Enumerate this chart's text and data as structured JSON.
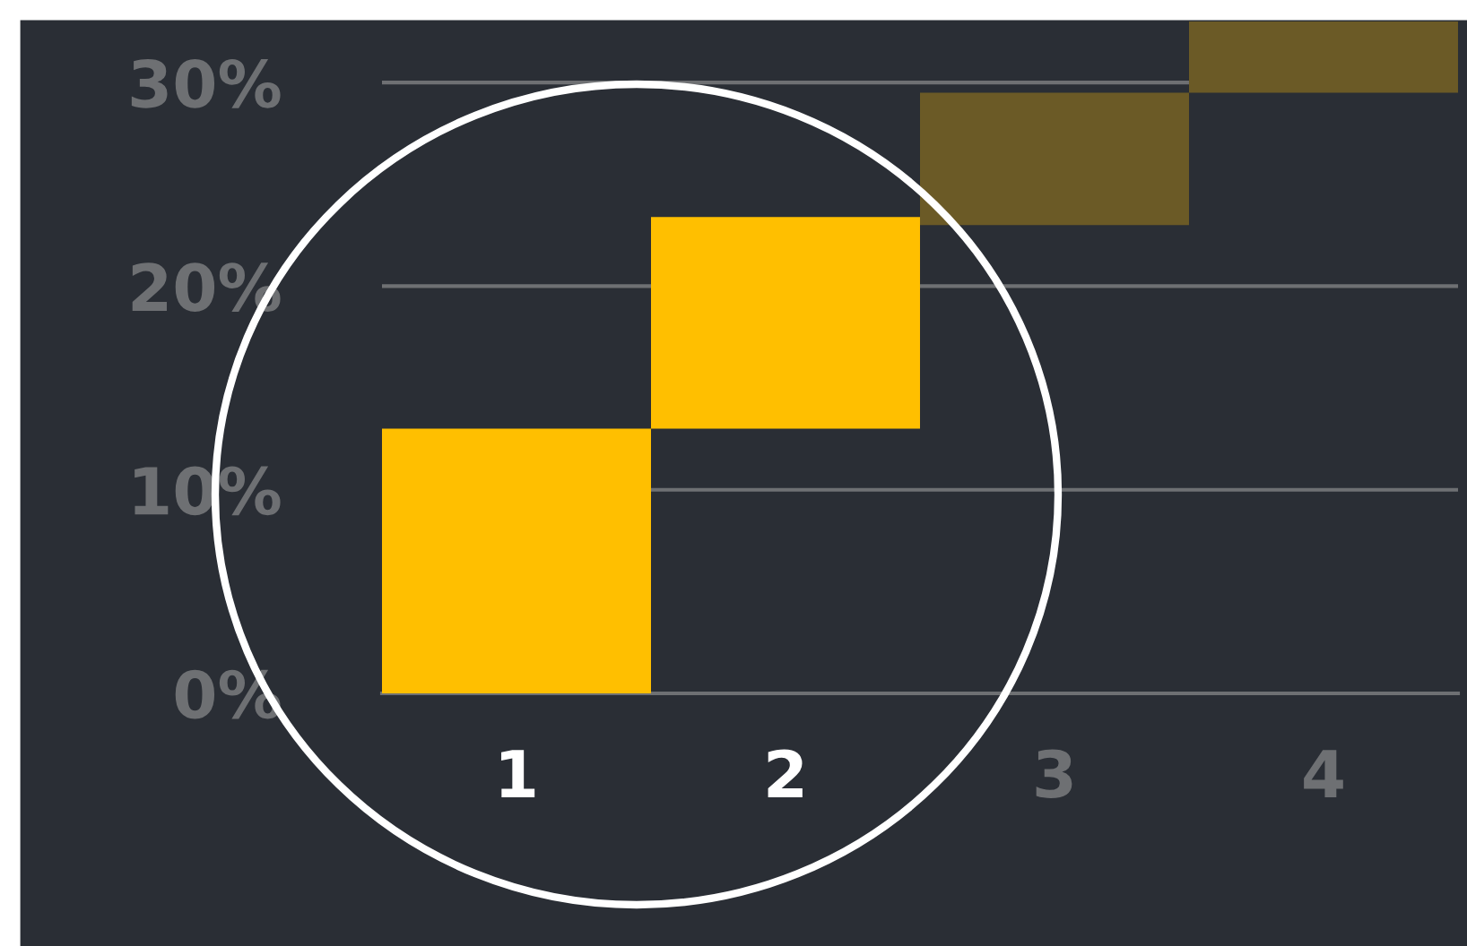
{
  "chart_data": {
    "type": "bar",
    "categories": [
      "1",
      "2",
      "3",
      "4"
    ],
    "values": [
      13,
      10.4,
      6.5,
      3.5
    ],
    "base": [
      0,
      13,
      23,
      29.5
    ],
    "colors": [
      "#ffbf00",
      "#ffbf00",
      "#6b5a26",
      "#6b5a26"
    ],
    "ylim": [
      0,
      33
    ],
    "yticks": [
      {
        "value": 0,
        "label": "0%"
      },
      {
        "value": 10,
        "label": "10%"
      },
      {
        "value": 20,
        "label": "20%"
      },
      {
        "value": 30,
        "label": "30%"
      }
    ],
    "grid": "y"
  }
}
